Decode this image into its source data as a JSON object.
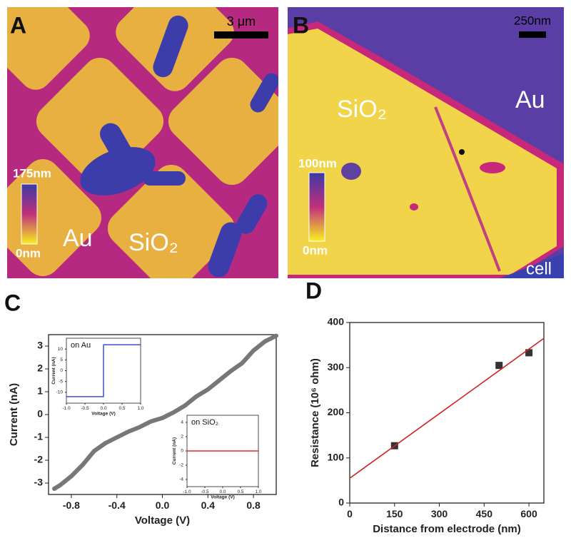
{
  "panels": {
    "A": {
      "letter": "A",
      "scale_bar": "3 μm",
      "colorbar_max": "175nm",
      "colorbar_min": "0nm",
      "label_au": "Au",
      "label_sio2": "SiO₂"
    },
    "B": {
      "letter": "B",
      "scale_bar": "250nm",
      "colorbar_max": "100nm",
      "colorbar_min": "0nm",
      "label_au": "Au",
      "label_sio2": "SiO₂",
      "label_cell": "cell"
    }
  },
  "chart_data": [
    {
      "type": "line",
      "panel": "C",
      "xlabel": "Voltage (V)",
      "ylabel": "Current (nA)",
      "x": [
        -0.95,
        -0.9,
        -0.8,
        -0.7,
        -0.6,
        -0.5,
        -0.4,
        -0.3,
        -0.2,
        -0.1,
        0,
        0.1,
        0.2,
        0.3,
        0.4,
        0.5,
        0.6,
        0.7,
        0.8,
        0.9,
        1.0
      ],
      "series": [
        {
          "color": "#777777",
          "values": [
            -3.25,
            -3.1,
            -2.7,
            -2.2,
            -1.6,
            -1.25,
            -1.0,
            -0.75,
            -0.55,
            -0.3,
            -0.15,
            0.1,
            0.4,
            0.8,
            1.1,
            1.5,
            1.9,
            2.25,
            2.8,
            3.2,
            3.45
          ]
        }
      ],
      "xlim": [
        -1,
        1
      ],
      "xticks": [
        -0.8,
        -0.4,
        {
          "value": 0,
          "label": "0.0"
        },
        0.4,
        0.8
      ],
      "ylim": [
        -3.5,
        3.5
      ],
      "yticks": [
        -3,
        -2,
        -1,
        0,
        1,
        2,
        3
      ]
    },
    {
      "type": "line",
      "title": "on Au",
      "xlabel": "Voltage (V)",
      "ylabel": "Current (nA)",
      "x": [
        -1.0,
        0,
        0,
        1.0
      ],
      "series": [
        {
          "color": "#3a50c8",
          "values": [
            -12,
            -12,
            12,
            12
          ]
        }
      ],
      "xlim": [
        -1,
        1
      ],
      "xticks": [
        {
          "value": -1,
          "label": "-1.0"
        },
        -0.5,
        {
          "value": 0,
          "label": "0.0"
        },
        0.5,
        {
          "value": 1,
          "label": "1.0"
        }
      ],
      "ylim": [
        -15,
        15
      ],
      "yticks": [
        -10,
        -5,
        0,
        5,
        10
      ]
    },
    {
      "type": "line",
      "title": "on SiO₂",
      "xlabel": "Voltage (V)",
      "ylabel": "Current (nA)",
      "x": [
        -1.0,
        1.0
      ],
      "series": [
        {
          "color": "#d83030",
          "values": [
            0,
            0
          ]
        }
      ],
      "xlim": [
        -1,
        1
      ],
      "xticks": [
        {
          "value": -1,
          "label": "-1.0"
        },
        -0.5,
        {
          "value": 0,
          "label": "0.0"
        },
        0.5,
        {
          "value": 1,
          "label": "1.0"
        }
      ],
      "ylim": [
        -5,
        5
      ],
      "yticks": [
        -4,
        -2,
        0,
        2,
        4
      ]
    },
    {
      "type": "scatter",
      "panel": "D",
      "xlabel": "Distance from electrode (nm)",
      "ylabel": "Resistance (10⁶ ohm)",
      "series": [
        {
          "type": "scatter",
          "color": "#333333",
          "x": [
            150,
            500,
            600
          ],
          "values": [
            127,
            305,
            333
          ]
        },
        {
          "type": "line",
          "color": "#d02020",
          "x": [
            0,
            650
          ],
          "values": [
            55,
            365
          ]
        }
      ],
      "xlim": [
        0,
        650
      ],
      "xticks": [
        0,
        150,
        300,
        450,
        600
      ],
      "ylim": [
        0,
        400
      ],
      "yticks": [
        0,
        100,
        200,
        300,
        400
      ]
    }
  ]
}
